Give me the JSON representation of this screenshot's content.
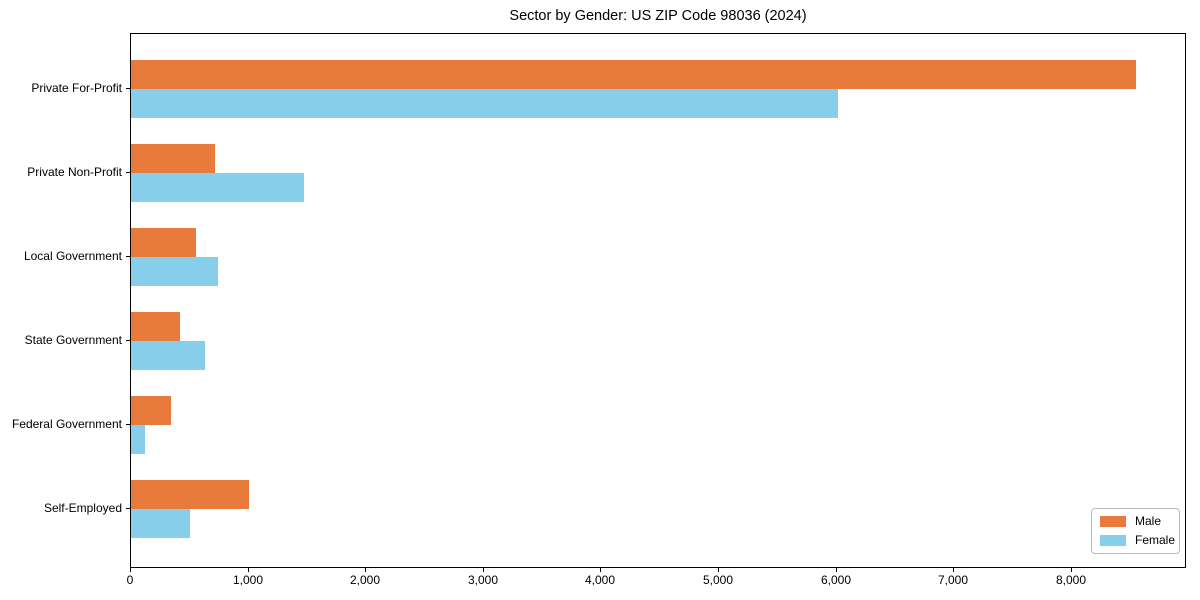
{
  "chart_data": {
    "type": "bar",
    "orientation": "horizontal",
    "title": "Sector by Gender: US ZIP Code 98036 (2024)",
    "categories": [
      "Private For-Profit",
      "Private Non-Profit",
      "Local Government",
      "State Government",
      "Federal Government",
      "Self-Employed"
    ],
    "series": [
      {
        "name": "Male",
        "color": "#e87b3c",
        "values": [
          8550,
          715,
          550,
          420,
          340,
          1000
        ]
      },
      {
        "name": "Female",
        "color": "#87ceeb",
        "values": [
          6010,
          1470,
          740,
          630,
          120,
          505
        ]
      }
    ],
    "xlabel": "",
    "ylabel": "",
    "xlim": [
      0,
      8980
    ],
    "xticks": [
      0,
      1000,
      2000,
      3000,
      4000,
      5000,
      6000,
      7000,
      8000
    ],
    "xtick_labels": [
      "0",
      "1,000",
      "2,000",
      "3,000",
      "4,000",
      "5,000",
      "6,000",
      "7,000",
      "8,000"
    ],
    "grid": false,
    "legend_position": "lower right",
    "background_color": "#ffffff",
    "spine_color": "#000000"
  }
}
